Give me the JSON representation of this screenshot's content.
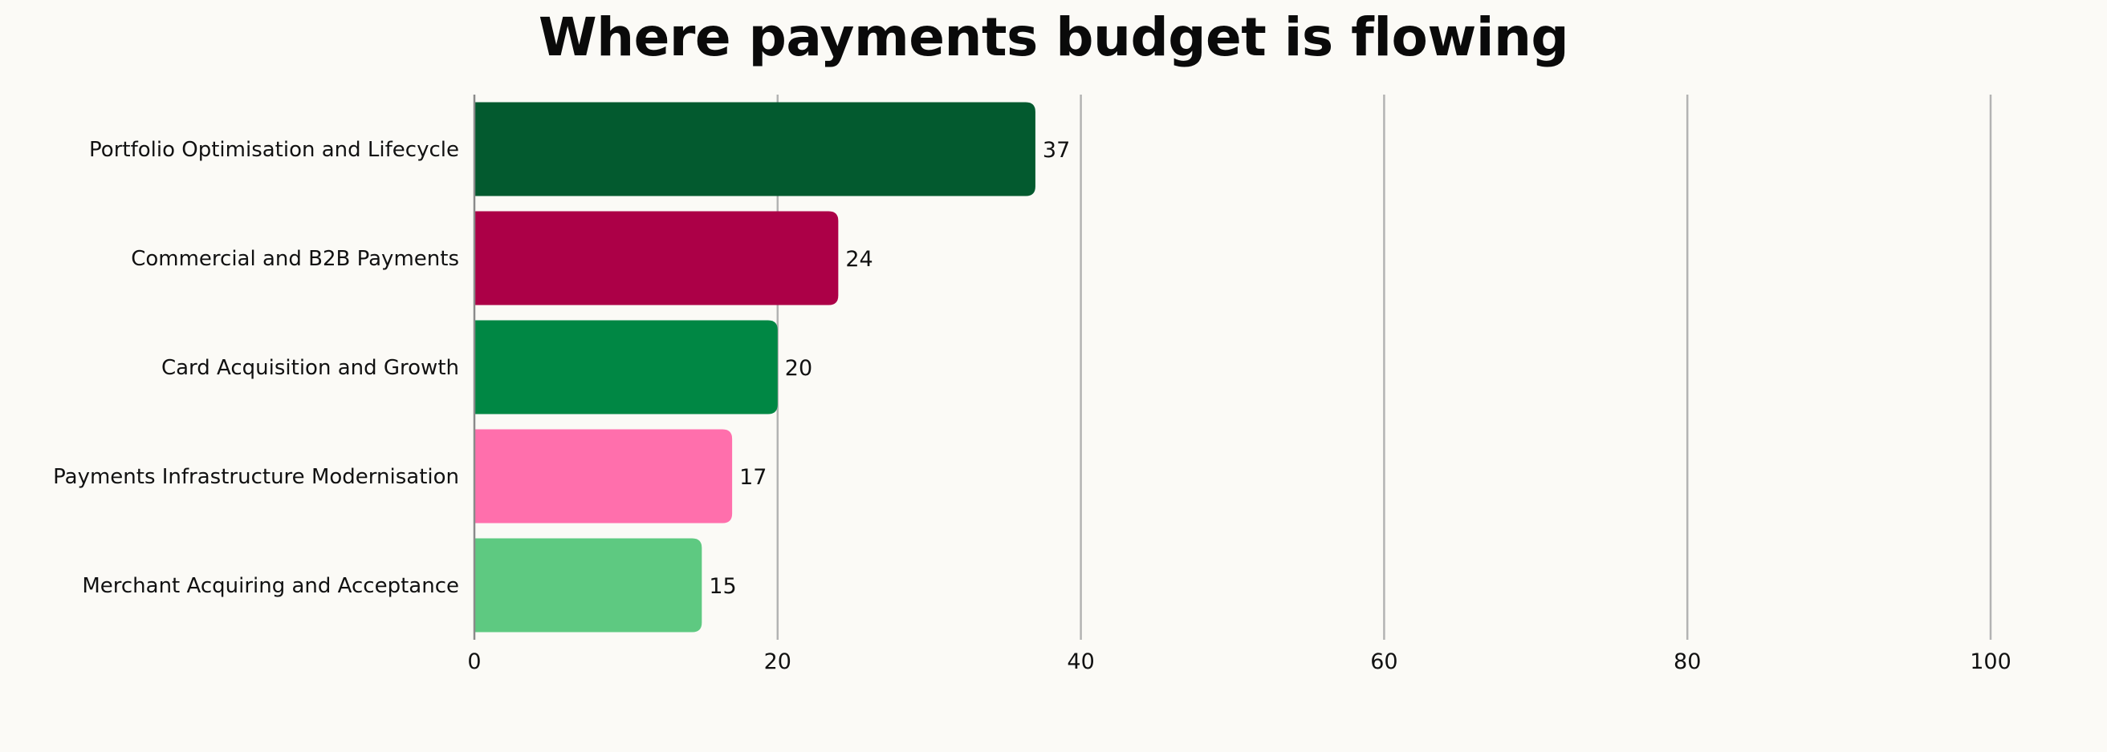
{
  "chart_data": {
    "type": "bar",
    "orientation": "horizontal",
    "title": "Where payments budget is flowing",
    "xlabel": "",
    "ylabel": "",
    "xlim": [
      0,
      100
    ],
    "ticks": [
      0,
      20,
      40,
      60,
      80,
      100
    ],
    "grid": "vertical",
    "categories": [
      "Portfolio Optimisation and Lifecycle",
      "Commercial and B2B Payments",
      "Card Acquisition and Growth",
      "Payments Infrastructure Modernisation",
      "Merchant Acquiring and Acceptance"
    ],
    "values": [
      37,
      24,
      20,
      17,
      15
    ],
    "colors": [
      "#035a2f",
      "#ac0047",
      "#008744",
      "#ff6fac",
      "#5ec981"
    ]
  }
}
